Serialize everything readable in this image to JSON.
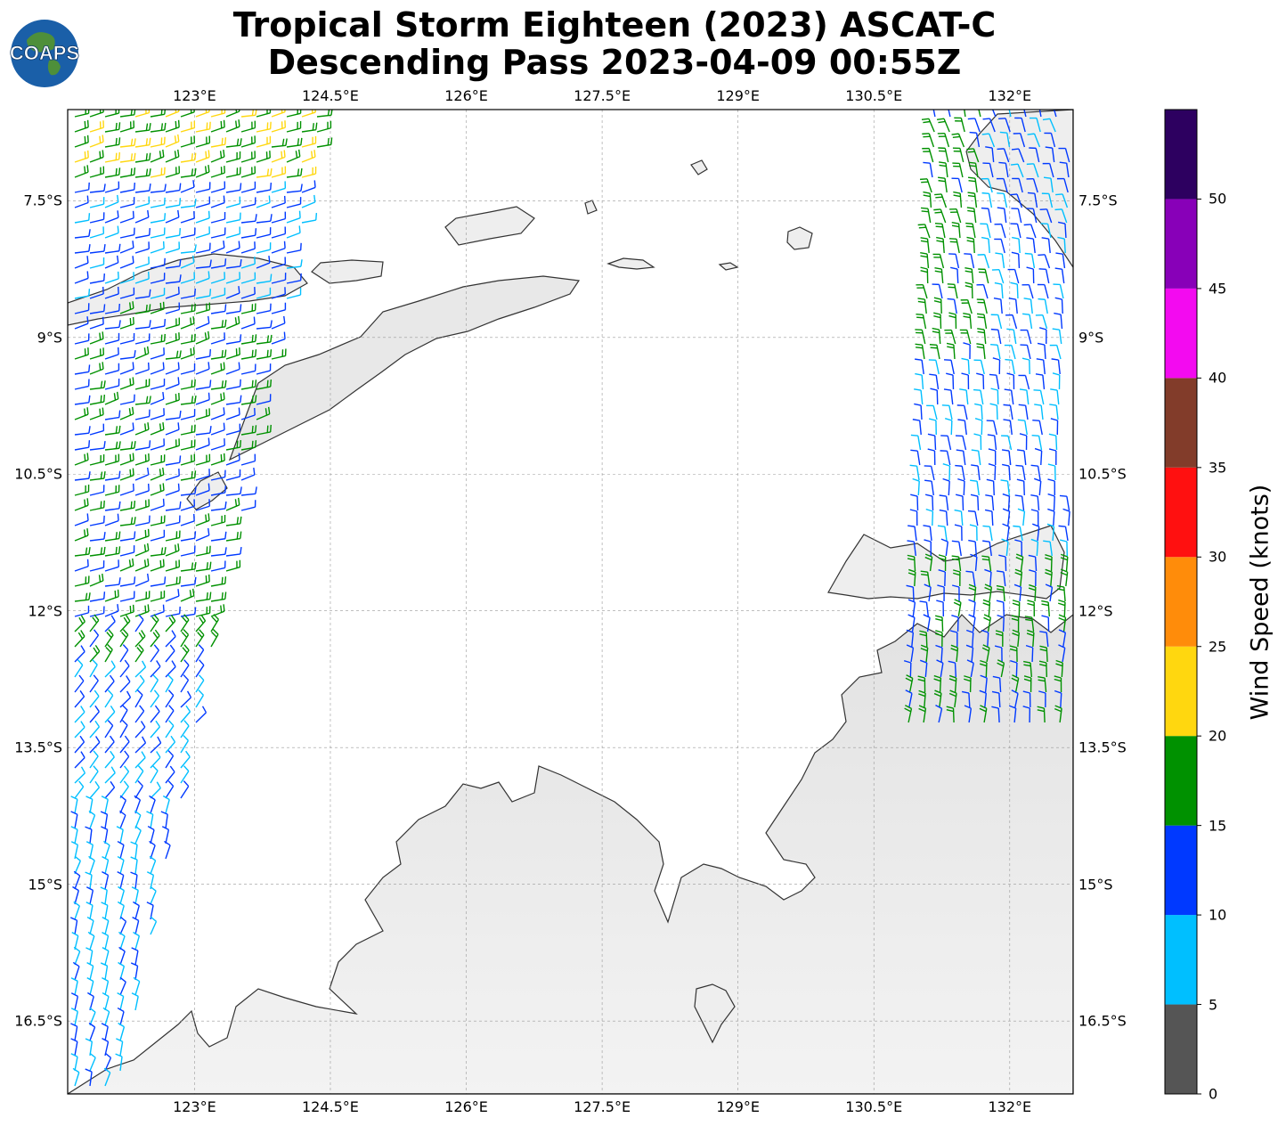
{
  "title_line1": "Tropical Storm Eighteen (2023) ASCAT-C",
  "title_line2": "Descending Pass 2023-04-09 00:55Z",
  "logo": {
    "text": "COAPS",
    "icon": "globe-icon"
  },
  "map": {
    "lon_range": [
      121.6,
      132.7
    ],
    "lat_range": [
      -17.3,
      -6.5
    ],
    "lon_ticks": [
      123,
      124.5,
      126,
      127.5,
      129,
      130.5,
      132
    ],
    "lon_labels": [
      "123°E",
      "124.5°E",
      "126°E",
      "127.5°E",
      "129°E",
      "130.5°E",
      "132°E"
    ],
    "lat_ticks": [
      -7.5,
      -9,
      -10.5,
      -12,
      -13.5,
      -15,
      -16.5
    ],
    "lat_labels": [
      "7.5°S",
      "9°S",
      "10.5°S",
      "12°S",
      "13.5°S",
      "15°S",
      "16.5°S"
    ],
    "gridlines": true,
    "land_fill": "#eeeeee",
    "coast_color": "#333333",
    "wind_swaths": [
      {
        "name": "west",
        "lon_west_top": 121.6,
        "lon_east_top": 124.5,
        "lon_west_bottom": 121.6,
        "lon_east_bottom": 122.2,
        "lat_top": -6.5,
        "lat_bottom": -17.3
      },
      {
        "name": "east",
        "lon_west_top": 131.1,
        "lon_east_top": 132.7,
        "lon_west_bottom": 130.8,
        "lon_east_bottom": 132.7,
        "lat_top": -6.5,
        "lat_bottom": -13.3
      }
    ]
  },
  "colorbar": {
    "label": "Wind Speed (knots)",
    "bounds": [
      0,
      5,
      10,
      15,
      20,
      25,
      30,
      35,
      40,
      45,
      50,
      55
    ],
    "tick_labels": [
      "0",
      "5",
      "10",
      "15",
      "20",
      "25",
      "30",
      "35",
      "40",
      "45",
      "50"
    ],
    "colors": [
      "#555555",
      "#00bfff",
      "#0039ff",
      "#009100",
      "#ffd70f",
      "#ff8c0a",
      "#ff1010",
      "#823c2a",
      "#f30af0",
      "#8800b8",
      "#2d0060"
    ]
  }
}
